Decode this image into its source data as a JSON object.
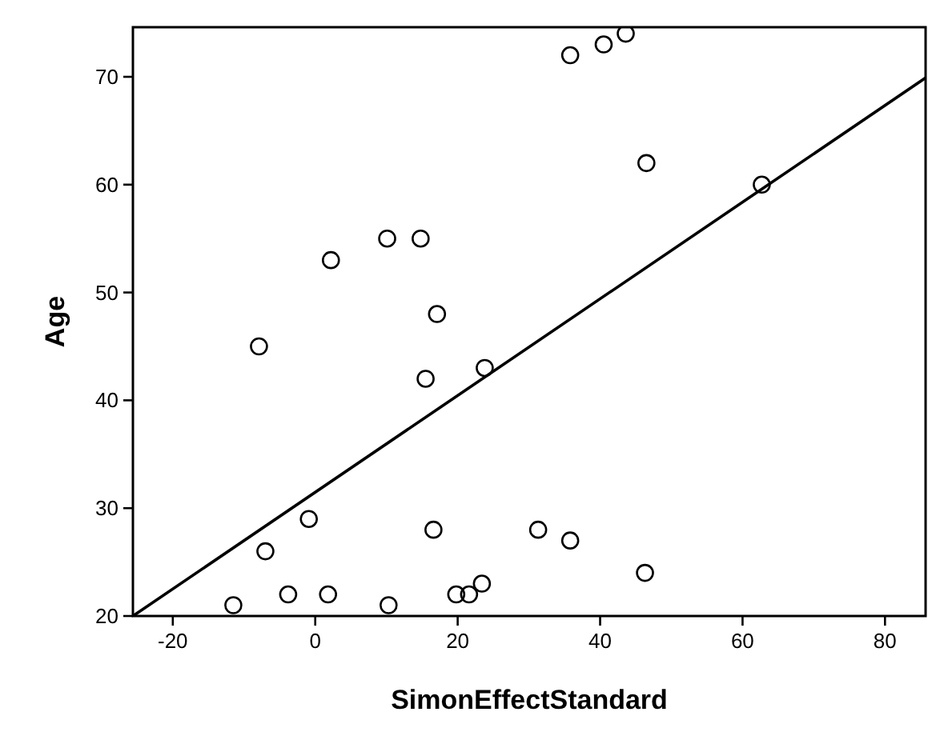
{
  "chart_data": {
    "type": "scatter",
    "xlabel": "SimonEffectStandard",
    "ylabel": "Age",
    "xlim": [
      -25.6,
      85.7
    ],
    "ylim": [
      20,
      74.6
    ],
    "xticks": [
      -20,
      0,
      20,
      40,
      60,
      80
    ],
    "yticks": [
      20,
      30,
      40,
      50,
      60,
      70
    ],
    "grid": false,
    "series": [
      {
        "marker": "circle",
        "color": "#000000",
        "x": [
          -11.5,
          -7.9,
          -7.0,
          -3.8,
          -0.9,
          1.8,
          2.2,
          10.1,
          10.3,
          14.8,
          15.5,
          17.1,
          16.6,
          19.8,
          21.6,
          23.4,
          23.8,
          31.3,
          35.8,
          35.8,
          40.5,
          43.6,
          46.3,
          46.5,
          62.7
        ],
        "values": [
          21,
          45,
          26,
          22,
          29,
          22,
          53,
          55,
          21,
          55,
          42,
          48,
          28,
          22,
          22,
          23,
          43,
          28,
          72,
          27,
          73,
          74,
          24,
          62,
          60
        ]
      },
      {
        "type": "line",
        "marker": "none",
        "color": "#000000",
        "x": [
          -25.6,
          85.7
        ],
        "values": [
          20,
          69.9
        ]
      }
    ]
  }
}
